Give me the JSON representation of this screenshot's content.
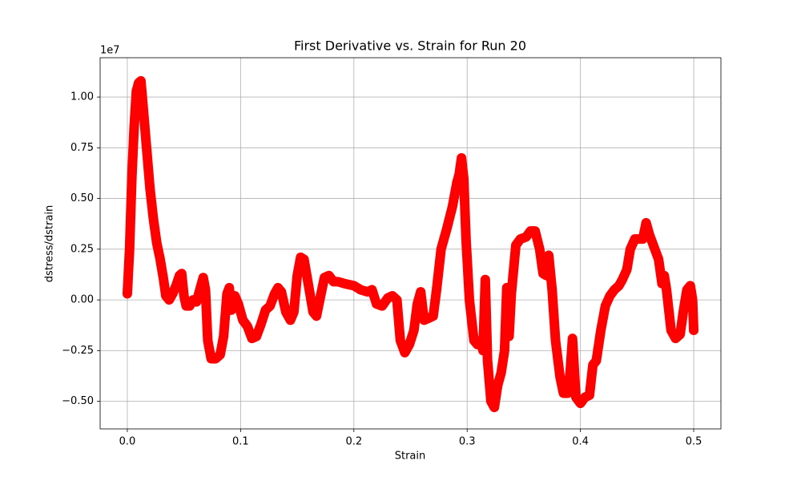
{
  "chart_data": {
    "type": "line",
    "title": "First Derivative vs. Strain for Run 20",
    "x_label": "Strain",
    "y_label": "dstress/dstrain",
    "y_offset_label": "1e7",
    "grid": true,
    "xlim": [
      -0.024,
      0.524
    ],
    "ylim": [
      -0.636,
      1.194
    ],
    "xticks": [
      {
        "value": 0,
        "label": "0.0"
      },
      0.1,
      0.2,
      0.3,
      0.4,
      0.5
    ],
    "yticks": [
      {
        "value": -0.5,
        "label": "−0.50"
      },
      {
        "value": -0.25,
        "label": "−0.25"
      },
      {
        "value": 0,
        "label": "0.00"
      },
      0.25,
      {
        "value": 0.5,
        "label": "0.50"
      },
      0.75,
      {
        "value": 1,
        "label": "1.00"
      }
    ],
    "series": [
      {
        "color": "#ff0000",
        "x": [
          0.0,
          0.002,
          0.004,
          0.006,
          0.008,
          0.01,
          0.012,
          0.014,
          0.017,
          0.02,
          0.023,
          0.026,
          0.029,
          0.032,
          0.034,
          0.037,
          0.04,
          0.043,
          0.046,
          0.048,
          0.05,
          0.052,
          0.055,
          0.058,
          0.061,
          0.064,
          0.067,
          0.069,
          0.071,
          0.074,
          0.078,
          0.082,
          0.085,
          0.088,
          0.09,
          0.092,
          0.095,
          0.098,
          0.102,
          0.106,
          0.11,
          0.114,
          0.118,
          0.122,
          0.126,
          0.13,
          0.133,
          0.136,
          0.14,
          0.144,
          0.147,
          0.15,
          0.153,
          0.156,
          0.16,
          0.164,
          0.167,
          0.171,
          0.174,
          0.178,
          0.182,
          0.186,
          0.192,
          0.2,
          0.206,
          0.212,
          0.216,
          0.22,
          0.225,
          0.23,
          0.234,
          0.238,
          0.241,
          0.245,
          0.249,
          0.253,
          0.256,
          0.259,
          0.262,
          0.266,
          0.27,
          0.273,
          0.277,
          0.282,
          0.287,
          0.291,
          0.293,
          0.295,
          0.297,
          0.299,
          0.302,
          0.306,
          0.309,
          0.312,
          0.314,
          0.316,
          0.318,
          0.321,
          0.324,
          0.327,
          0.33,
          0.333,
          0.335,
          0.337,
          0.339,
          0.343,
          0.347,
          0.352,
          0.356,
          0.36,
          0.364,
          0.367,
          0.37,
          0.372,
          0.375,
          0.378,
          0.382,
          0.385,
          0.389,
          0.391,
          0.393,
          0.396,
          0.4,
          0.404,
          0.408,
          0.411,
          0.414,
          0.418,
          0.422,
          0.426,
          0.43,
          0.434,
          0.437,
          0.441,
          0.444,
          0.448,
          0.451,
          0.455,
          0.458,
          0.461,
          0.465,
          0.469,
          0.472,
          0.474,
          0.476,
          0.48,
          0.484,
          0.488,
          0.491,
          0.494,
          0.497,
          0.499,
          0.5
        ],
        "values": [
          0.03,
          0.25,
          0.6,
          0.85,
          1.03,
          1.07,
          1.08,
          0.95,
          0.75,
          0.55,
          0.4,
          0.28,
          0.2,
          0.1,
          0.02,
          0.0,
          0.03,
          0.07,
          0.12,
          0.13,
          0.02,
          -0.03,
          -0.03,
          0.0,
          -0.01,
          0.05,
          0.11,
          0.05,
          -0.2,
          -0.29,
          -0.29,
          -0.27,
          -0.18,
          0.03,
          0.06,
          -0.05,
          0.02,
          -0.02,
          -0.1,
          -0.13,
          -0.19,
          -0.18,
          -0.12,
          -0.05,
          -0.03,
          0.03,
          0.06,
          0.04,
          -0.06,
          -0.1,
          -0.06,
          0.12,
          0.21,
          0.2,
          0.07,
          -0.06,
          -0.08,
          0.03,
          0.11,
          0.12,
          0.09,
          0.09,
          0.08,
          0.07,
          0.05,
          0.04,
          0.05,
          -0.02,
          -0.03,
          0.01,
          0.02,
          0.0,
          -0.2,
          -0.26,
          -0.22,
          -0.15,
          -0.02,
          0.04,
          -0.1,
          -0.09,
          -0.08,
          0.05,
          0.25,
          0.35,
          0.46,
          0.58,
          0.62,
          0.7,
          0.6,
          0.3,
          0.0,
          -0.2,
          -0.22,
          -0.2,
          -0.25,
          0.1,
          -0.3,
          -0.5,
          -0.53,
          -0.42,
          -0.36,
          -0.25,
          0.06,
          -0.18,
          0.03,
          0.27,
          0.3,
          0.31,
          0.34,
          0.34,
          0.25,
          0.13,
          0.12,
          0.22,
          0.05,
          -0.2,
          -0.38,
          -0.46,
          -0.46,
          -0.35,
          -0.19,
          -0.48,
          -0.51,
          -0.48,
          -0.47,
          -0.32,
          -0.3,
          -0.15,
          -0.03,
          0.02,
          0.05,
          0.07,
          0.1,
          0.15,
          0.25,
          0.3,
          0.3,
          0.3,
          0.38,
          0.32,
          0.26,
          0.2,
          0.08,
          0.12,
          0.05,
          -0.15,
          -0.19,
          -0.17,
          -0.05,
          0.05,
          0.07,
          0.0,
          -0.15
        ]
      }
    ]
  }
}
